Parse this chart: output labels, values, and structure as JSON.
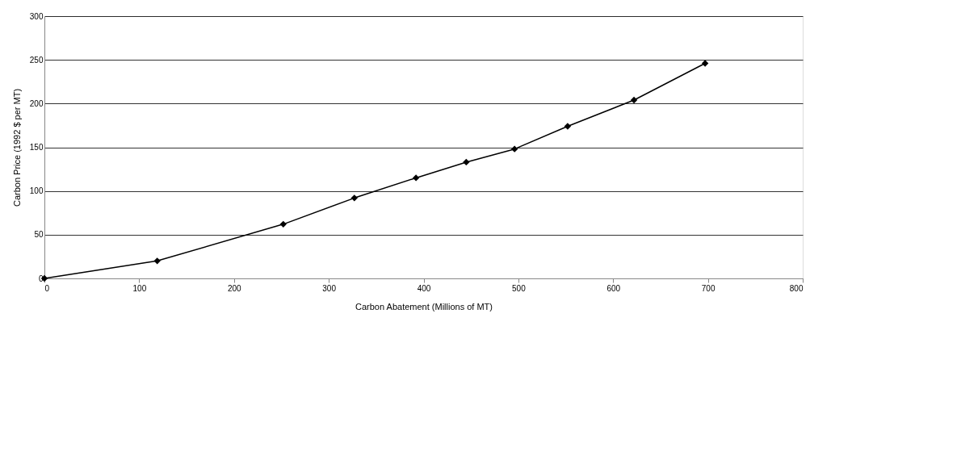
{
  "chart_data": {
    "type": "line",
    "xlabel": "Carbon Abatement (Millions of MT)",
    "ylabel": "Carbon Price (1992 $ per MT)",
    "x": [
      0,
      119,
      252,
      327,
      392,
      445,
      496,
      552,
      622,
      697
    ],
    "series": [
      {
        "color": "#000000",
        "values": [
          0,
          20,
          62,
          92,
          115,
          133,
          148,
          174,
          204,
          246
        ]
      }
    ],
    "xlim": [
      0,
      800
    ],
    "xticks": [
      0,
      100,
      200,
      300,
      400,
      500,
      600,
      700,
      800
    ],
    "ylim": [
      0,
      300
    ],
    "yticks": [
      0,
      50,
      100,
      150,
      200,
      250,
      300
    ],
    "grid": "y",
    "marker": "diamond",
    "line_style": "solid"
  }
}
